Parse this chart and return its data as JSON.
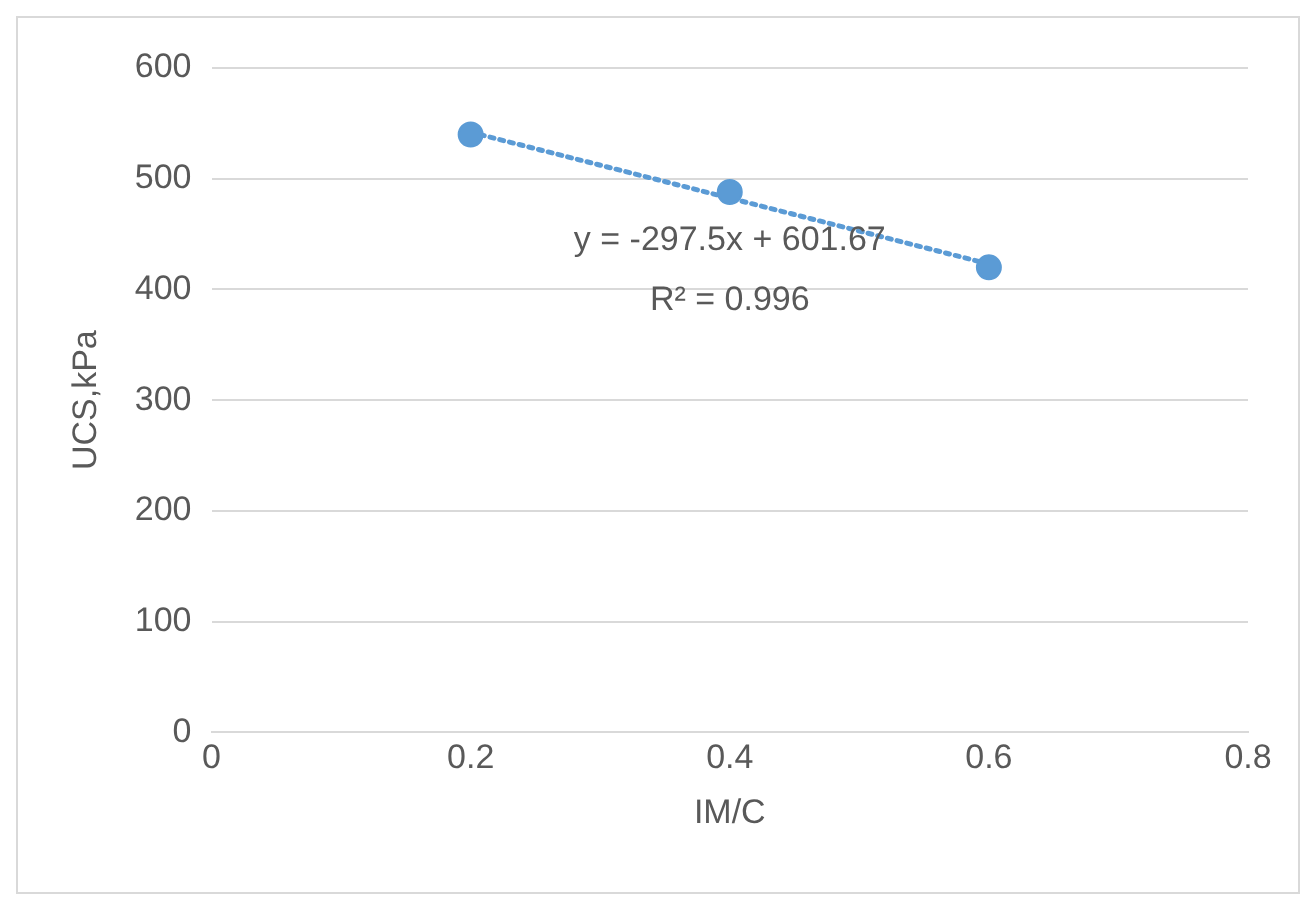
{
  "chart_data": {
    "type": "scatter",
    "xlabel": "IM/C",
    "ylabel": "UCS,kPa",
    "x": [
      0.2,
      0.4,
      0.6
    ],
    "series": [
      {
        "type": "scatter",
        "color": "#5b9bd5",
        "values": [
          540,
          488,
          420
        ],
        "marker": "circle"
      },
      {
        "type": "line",
        "color": "#5b9bd5",
        "x": [
          0.2,
          0.6
        ],
        "values": [
          542,
          423
        ],
        "marker": "none",
        "line_style": "dotted"
      }
    ],
    "xlim": [
      0,
      0.8
    ],
    "xticks": [
      0,
      0.2,
      0.4,
      0.6,
      0.8
    ],
    "ylim": [
      0,
      600
    ],
    "yticks": [
      0,
      100,
      200,
      300,
      400,
      500,
      600
    ],
    "grid": "y",
    "legend": false,
    "annotations": [
      "y = -297.5x + 601.67",
      "R² = 0.996"
    ]
  }
}
